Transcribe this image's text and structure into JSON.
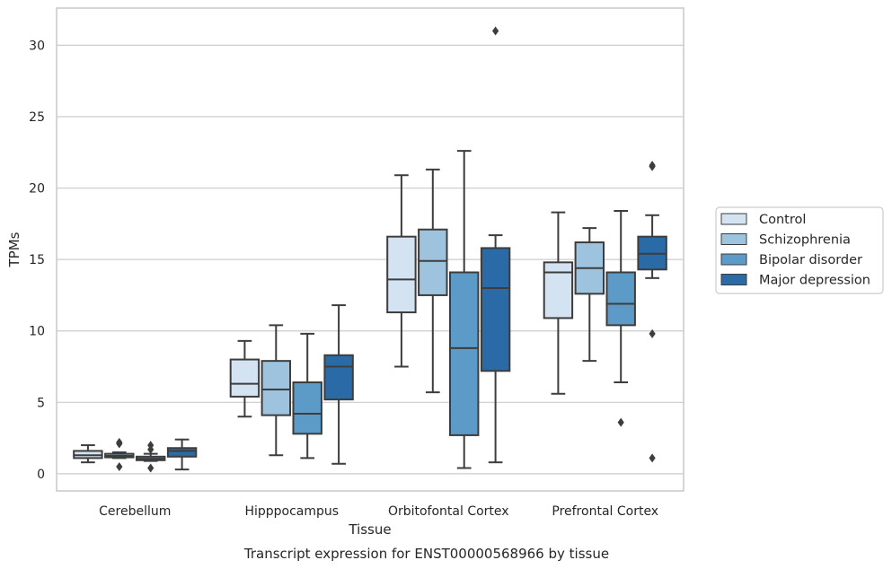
{
  "chart_data": {
    "type": "box",
    "caption": "Transcript expression for ENST00000568966 by tissue",
    "xlabel": "Tissue",
    "ylabel": "TPMs",
    "ylim": [
      -1.2,
      32.6
    ],
    "yticks": [
      0,
      5,
      10,
      15,
      20,
      25,
      30
    ],
    "grid": "horizontal",
    "legend_position": "right",
    "categories": [
      "Cerebellum",
      "Hipppocampus",
      "Orbitofontal Cortex",
      "Prefrontal Cortex"
    ],
    "series": [
      {
        "name": "Control",
        "color": "#d4e3f1",
        "boxes": [
          {
            "whisker_low": 0.8,
            "q1": 1.1,
            "median": 1.3,
            "q3": 1.6,
            "whisker_high": 2.0,
            "outliers": []
          },
          {
            "whisker_low": 4.0,
            "q1": 5.4,
            "median": 6.3,
            "q3": 8.0,
            "whisker_high": 9.3,
            "outliers": []
          },
          {
            "whisker_low": 7.5,
            "q1": 11.3,
            "median": 13.6,
            "q3": 16.6,
            "whisker_high": 20.9,
            "outliers": []
          },
          {
            "whisker_low": 5.6,
            "q1": 10.9,
            "median": 14.1,
            "q3": 14.8,
            "whisker_high": 18.3,
            "outliers": []
          }
        ]
      },
      {
        "name": "Schizophrenia",
        "color": "#9dc3de",
        "boxes": [
          {
            "whisker_low": 1.1,
            "q1": 1.15,
            "median": 1.25,
            "q3": 1.4,
            "whisker_high": 1.5,
            "outliers": [
              2.1,
              2.2,
              0.5
            ]
          },
          {
            "whisker_low": 1.3,
            "q1": 4.1,
            "median": 5.9,
            "q3": 7.9,
            "whisker_high": 10.4,
            "outliers": []
          },
          {
            "whisker_low": 5.7,
            "q1": 12.5,
            "median": 14.9,
            "q3": 17.1,
            "whisker_high": 21.3,
            "outliers": []
          },
          {
            "whisker_low": 7.9,
            "q1": 12.6,
            "median": 14.4,
            "q3": 16.2,
            "whisker_high": 17.2,
            "outliers": []
          }
        ]
      },
      {
        "name": "Bipolar disorder",
        "color": "#5c9ac8",
        "boxes": [
          {
            "whisker_low": 0.9,
            "q1": 0.95,
            "median": 1.05,
            "q3": 1.2,
            "whisker_high": 1.4,
            "outliers": [
              2.0,
              1.7,
              0.4
            ]
          },
          {
            "whisker_low": 1.1,
            "q1": 2.8,
            "median": 4.2,
            "q3": 6.4,
            "whisker_high": 9.8,
            "outliers": []
          },
          {
            "whisker_low": 0.4,
            "q1": 2.7,
            "median": 8.8,
            "q3": 14.1,
            "whisker_high": 22.6,
            "outliers": []
          },
          {
            "whisker_low": 6.4,
            "q1": 10.4,
            "median": 11.9,
            "q3": 14.1,
            "whisker_high": 18.4,
            "outliers": [
              3.6
            ]
          }
        ]
      },
      {
        "name": "Major depression",
        "color": "#2a6aa7",
        "boxes": [
          {
            "whisker_low": 0.3,
            "q1": 1.2,
            "median": 1.6,
            "q3": 1.8,
            "whisker_high": 2.4,
            "outliers": []
          },
          {
            "whisker_low": 0.7,
            "q1": 5.2,
            "median": 7.5,
            "q3": 8.3,
            "whisker_high": 11.8,
            "outliers": []
          },
          {
            "whisker_low": 0.8,
            "q1": 7.2,
            "median": 13.0,
            "q3": 15.8,
            "whisker_high": 16.7,
            "outliers": [
              31.0
            ]
          },
          {
            "whisker_low": 13.7,
            "q1": 14.3,
            "median": 15.4,
            "q3": 16.6,
            "whisker_high": 18.1,
            "outliers": [
              21.5,
              21.6,
              9.8,
              1.1
            ]
          }
        ]
      }
    ]
  }
}
